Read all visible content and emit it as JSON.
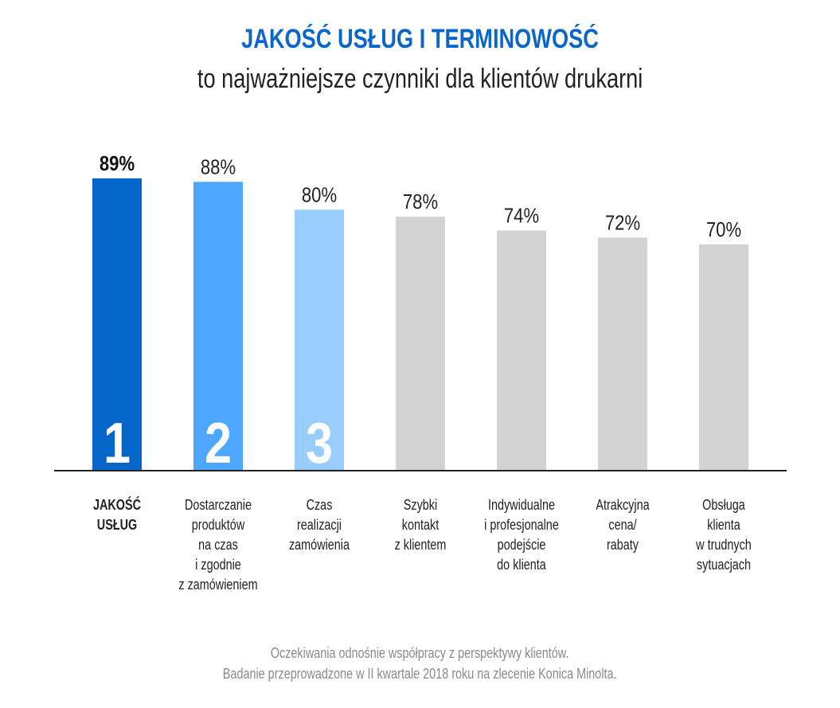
{
  "chart_data": {
    "type": "bar",
    "title": "JAKOŚĆ USŁUG I TERMINOWOŚĆ",
    "subtitle": "to najważniejsze czynniki dla klientów drukarni",
    "categories": [
      "JAKOŚĆ\nUSŁUG",
      "Dostarczanie\nproduktów\nna czas\ni zgodnie\nz zamówieniem",
      "Czas\nrealizacji\nzamówienia",
      "Szybki\nkontakt\nz klientem",
      "Indywidualne\ni profesjonalne\npodejście\ndo klienta",
      "Atrakcyjna\ncena/\nrabaty",
      "Obsługa\nklienta\nw trudnych\nsytuacjach"
    ],
    "values": [
      89,
      88,
      80,
      78,
      74,
      72,
      70
    ],
    "value_labels": [
      "89%",
      "88%",
      "80%",
      "78%",
      "74%",
      "72%",
      "70%"
    ],
    "ranks": [
      "1",
      "2",
      "3",
      "",
      "",
      "",
      ""
    ],
    "colors": [
      "#0466c8",
      "#4da6ff",
      "#99ccff",
      "#d3d3d3",
      "#d3d3d3",
      "#d3d3d3",
      "#d3d3d3"
    ],
    "ylim": [
      5,
      90
    ],
    "xlabel": "",
    "ylabel": "",
    "grid": false
  },
  "footer": {
    "line1": "Oczekiwania odnośnie współpracy z perspektywy klientów.",
    "line2": "Badanie przeprowadzone w II kwartale 2018 roku na zlecenie Konica Minolta."
  }
}
